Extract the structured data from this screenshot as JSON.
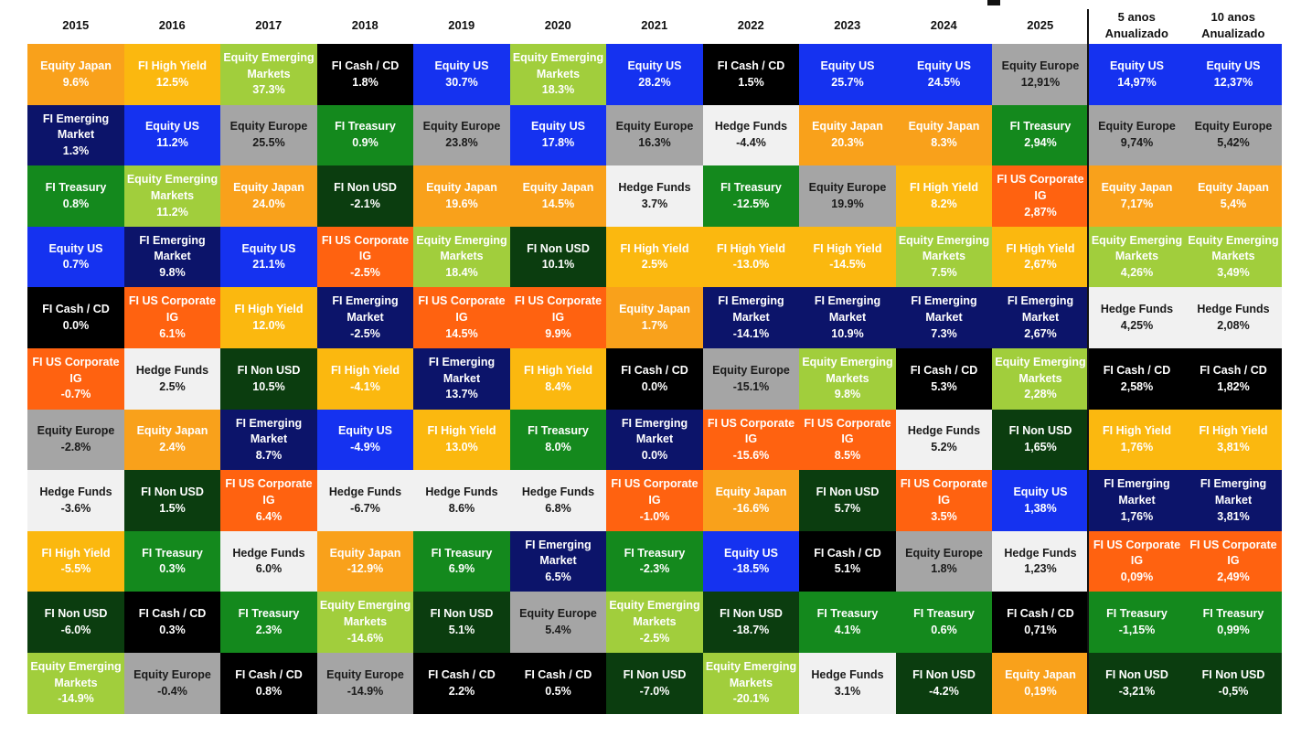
{
  "colors": {
    "Equity Japan": "#F9A11B",
    "FI High Yield": "#FBB80F",
    "Equity Emerging Markets": "#A1CE3C",
    "FI Cash / CD": "#000000",
    "Equity US": "#1532F0",
    "FI Emerging Market": "#0C146A",
    "FI Treasury": "#14891D",
    "Equity Europe": "#A5A5A5",
    "Hedge Funds": "#F1F1F1",
    "FI Non USD": "#0B3D0F",
    "FI US Corporate IG": "#FF6210"
  },
  "chart_data": {
    "type": "table",
    "columns": [
      "2015",
      "2016",
      "2017",
      "2018",
      "2019",
      "2020",
      "2021",
      "2022",
      "2023",
      "2024",
      "2025",
      "5 anos\nAnualizado",
      "10 anos\nAnualizado"
    ],
    "cells": [
      [
        {
          "name": "Equity Japan",
          "value": "9.6%"
        },
        {
          "name": "FI Emerging Market",
          "value": "1.3%"
        },
        {
          "name": "FI Treasury",
          "value": "0.8%"
        },
        {
          "name": "Equity US",
          "value": "0.7%"
        },
        {
          "name": "FI Cash / CD",
          "value": "0.0%"
        },
        {
          "name": "FI US Corporate IG",
          "value": "-0.7%"
        },
        {
          "name": "Equity Europe",
          "value": "-2.8%"
        },
        {
          "name": "Hedge Funds",
          "value": "-3.6%"
        },
        {
          "name": "FI High Yield",
          "value": "-5.5%"
        },
        {
          "name": "FI Non USD",
          "value": "-6.0%"
        },
        {
          "name": "Equity Emerging Markets",
          "value": "-14.9%"
        }
      ],
      [
        {
          "name": "FI High Yield",
          "value": "12.5%"
        },
        {
          "name": "Equity US",
          "value": "11.2%"
        },
        {
          "name": "Equity Emerging Markets",
          "value": "11.2%"
        },
        {
          "name": "FI Emerging Market",
          "value": "9.8%"
        },
        {
          "name": "FI US Corporate IG",
          "value": "6.1%"
        },
        {
          "name": "Hedge Funds",
          "value": "2.5%"
        },
        {
          "name": "Equity Japan",
          "value": "2.4%"
        },
        {
          "name": "FI Non USD",
          "value": "1.5%"
        },
        {
          "name": "FI Treasury",
          "value": "0.3%"
        },
        {
          "name": "FI Cash / CD",
          "value": "0.3%"
        },
        {
          "name": "Equity Europe",
          "value": "-0.4%"
        }
      ],
      [
        {
          "name": "Equity Emerging Markets",
          "value": "37.3%"
        },
        {
          "name": "Equity Europe",
          "value": "25.5%"
        },
        {
          "name": "Equity Japan",
          "value": "24.0%"
        },
        {
          "name": "Equity US",
          "value": "21.1%"
        },
        {
          "name": "FI High Yield",
          "value": "12.0%"
        },
        {
          "name": "FI Non USD",
          "value": "10.5%"
        },
        {
          "name": "FI Emerging Market",
          "value": "8.7%"
        },
        {
          "name": "FI US Corporate IG",
          "value": "6.4%"
        },
        {
          "name": "Hedge Funds",
          "value": "6.0%"
        },
        {
          "name": "FI Treasury",
          "value": "2.3%"
        },
        {
          "name": "FI Cash / CD",
          "value": "0.8%"
        }
      ],
      [
        {
          "name": "FI Cash / CD",
          "value": "1.8%"
        },
        {
          "name": "FI Treasury",
          "value": "0.9%"
        },
        {
          "name": "FI Non USD",
          "value": "-2.1%"
        },
        {
          "name": "FI US Corporate IG",
          "value": "-2.5%"
        },
        {
          "name": "FI Emerging Market",
          "value": "-2.5%"
        },
        {
          "name": "FI High Yield",
          "value": "-4.1%"
        },
        {
          "name": "Equity US",
          "value": "-4.9%"
        },
        {
          "name": "Hedge Funds",
          "value": "-6.7%"
        },
        {
          "name": "Equity Japan",
          "value": "-12.9%"
        },
        {
          "name": "Equity Emerging Markets",
          "value": "-14.6%"
        },
        {
          "name": "Equity Europe",
          "value": "-14.9%"
        }
      ],
      [
        {
          "name": "Equity US",
          "value": "30.7%"
        },
        {
          "name": "Equity Europe",
          "value": "23.8%"
        },
        {
          "name": "Equity Japan",
          "value": "19.6%"
        },
        {
          "name": "Equity Emerging Markets",
          "value": "18.4%"
        },
        {
          "name": "FI US Corporate IG",
          "value": "14.5%"
        },
        {
          "name": "FI Emerging Market",
          "value": "13.7%"
        },
        {
          "name": "FI High Yield",
          "value": "13.0%"
        },
        {
          "name": "Hedge Funds",
          "value": "8.6%"
        },
        {
          "name": "FI Treasury",
          "value": "6.9%"
        },
        {
          "name": "FI Non USD",
          "value": "5.1%"
        },
        {
          "name": "FI Cash / CD",
          "value": "2.2%"
        }
      ],
      [
        {
          "name": "Equity Emerging Markets",
          "value": "18.3%"
        },
        {
          "name": "Equity US",
          "value": "17.8%"
        },
        {
          "name": "Equity Japan",
          "value": "14.5%"
        },
        {
          "name": "FI Non USD",
          "value": "10.1%"
        },
        {
          "name": "FI US Corporate IG",
          "value": "9.9%"
        },
        {
          "name": "FI High Yield",
          "value": "8.4%"
        },
        {
          "name": "FI Treasury",
          "value": "8.0%"
        },
        {
          "name": "Hedge Funds",
          "value": "6.8%"
        },
        {
          "name": "FI Emerging Market",
          "value": "6.5%"
        },
        {
          "name": "Equity Europe",
          "value": "5.4%"
        },
        {
          "name": "FI Cash / CD",
          "value": "0.5%"
        }
      ],
      [
        {
          "name": "Equity US",
          "value": "28.2%"
        },
        {
          "name": "Equity Europe",
          "value": "16.3%"
        },
        {
          "name": "Hedge Funds",
          "value": "3.7%"
        },
        {
          "name": "FI High Yield",
          "value": "2.5%"
        },
        {
          "name": "Equity Japan",
          "value": "1.7%"
        },
        {
          "name": "FI Cash / CD",
          "value": "0.0%"
        },
        {
          "name": "FI Emerging Market",
          "value": "0.0%"
        },
        {
          "name": "FI US Corporate IG",
          "value": "-1.0%"
        },
        {
          "name": "FI Treasury",
          "value": "-2.3%"
        },
        {
          "name": "Equity Emerging Markets",
          "value": "-2.5%"
        },
        {
          "name": "FI Non USD",
          "value": "-7.0%"
        }
      ],
      [
        {
          "name": "FI Cash / CD",
          "value": "1.5%"
        },
        {
          "name": "Hedge Funds",
          "value": "-4.4%"
        },
        {
          "name": "FI Treasury",
          "value": "-12.5%"
        },
        {
          "name": "FI High Yield",
          "value": "-13.0%"
        },
        {
          "name": "FI Emerging Market",
          "value": "-14.1%"
        },
        {
          "name": "Equity Europe",
          "value": "-15.1%"
        },
        {
          "name": "FI US Corporate IG",
          "value": "-15.6%"
        },
        {
          "name": "Equity Japan",
          "value": "-16.6%"
        },
        {
          "name": "Equity US",
          "value": "-18.5%"
        },
        {
          "name": "FI Non USD",
          "value": "-18.7%"
        },
        {
          "name": "Equity Emerging Markets",
          "value": "-20.1%"
        }
      ],
      [
        {
          "name": "Equity US",
          "value": "25.7%"
        },
        {
          "name": "Equity Japan",
          "value": "20.3%"
        },
        {
          "name": "Equity Europe",
          "value": "19.9%"
        },
        {
          "name": "FI High Yield",
          "value": "-14.5%"
        },
        {
          "name": "FI Emerging Market",
          "value": "10.9%"
        },
        {
          "name": "Equity Emerging Markets",
          "value": "9.8%"
        },
        {
          "name": "FI US Corporate IG",
          "value": "8.5%"
        },
        {
          "name": "FI Non USD",
          "value": "5.7%"
        },
        {
          "name": "FI Cash / CD",
          "value": "5.1%"
        },
        {
          "name": "FI Treasury",
          "value": "4.1%"
        },
        {
          "name": "Hedge Funds",
          "value": "3.1%"
        }
      ],
      [
        {
          "name": "Equity US",
          "value": "24.5%"
        },
        {
          "name": "Equity Japan",
          "value": "8.3%"
        },
        {
          "name": "FI High Yield",
          "value": "8.2%"
        },
        {
          "name": "Equity Emerging Markets",
          "value": "7.5%"
        },
        {
          "name": "FI Emerging Market",
          "value": "7.3%"
        },
        {
          "name": "FI Cash / CD",
          "value": "5.3%"
        },
        {
          "name": "Hedge Funds",
          "value": "5.2%"
        },
        {
          "name": "FI US Corporate IG",
          "value": "3.5%"
        },
        {
          "name": "Equity Europe",
          "value": "1.8%"
        },
        {
          "name": "FI Treasury",
          "value": "0.6%"
        },
        {
          "name": "FI Non USD",
          "value": "-4.2%"
        }
      ],
      [
        {
          "name": "Equity Europe",
          "value": "12,91%"
        },
        {
          "name": "FI Treasury",
          "value": "2,94%"
        },
        {
          "name": "FI US Corporate IG",
          "value": "2,87%"
        },
        {
          "name": "FI High Yield",
          "value": "2,67%"
        },
        {
          "name": "FI Emerging Market",
          "value": "2,67%"
        },
        {
          "name": "Equity Emerging Markets",
          "value": "2,28%"
        },
        {
          "name": "FI Non USD",
          "value": "1,65%"
        },
        {
          "name": "Equity US",
          "value": "1,38%"
        },
        {
          "name": "Hedge Funds",
          "value": "1,23%"
        },
        {
          "name": "FI Cash / CD",
          "value": "0,71%"
        },
        {
          "name": "Equity Japan",
          "value": "0,19%"
        }
      ],
      [
        {
          "name": "Equity US",
          "value": "14,97%"
        },
        {
          "name": "Equity Europe",
          "value": "9,74%"
        },
        {
          "name": "Equity Japan",
          "value": "7,17%"
        },
        {
          "name": "Equity Emerging Markets",
          "value": "4,26%"
        },
        {
          "name": "Hedge Funds",
          "value": "4,25%"
        },
        {
          "name": "FI Cash / CD",
          "value": "2,58%"
        },
        {
          "name": "FI High Yield",
          "value": "1,76%"
        },
        {
          "name": "FI Emerging Market",
          "value": "1,76%"
        },
        {
          "name": "FI US Corporate IG",
          "value": "0,09%"
        },
        {
          "name": "FI Treasury",
          "value": "-1,15%"
        },
        {
          "name": "FI Non USD",
          "value": "-3,21%"
        }
      ],
      [
        {
          "name": "Equity US",
          "value": "12,37%"
        },
        {
          "name": "Equity Europe",
          "value": "5,42%"
        },
        {
          "name": "Equity Japan",
          "value": "5,4%"
        },
        {
          "name": "Equity Emerging Markets",
          "value": "3,49%"
        },
        {
          "name": "Hedge Funds",
          "value": "2,08%"
        },
        {
          "name": "FI Cash / CD",
          "value": "1,82%"
        },
        {
          "name": "FI High Yield",
          "value": "3,81%"
        },
        {
          "name": "FI Emerging Market",
          "value": "3,81%"
        },
        {
          "name": "FI US Corporate IG",
          "value": "2,49%"
        },
        {
          "name": "FI Treasury",
          "value": "0,99%"
        },
        {
          "name": "FI Non USD",
          "value": "-0,5%"
        }
      ]
    ]
  }
}
